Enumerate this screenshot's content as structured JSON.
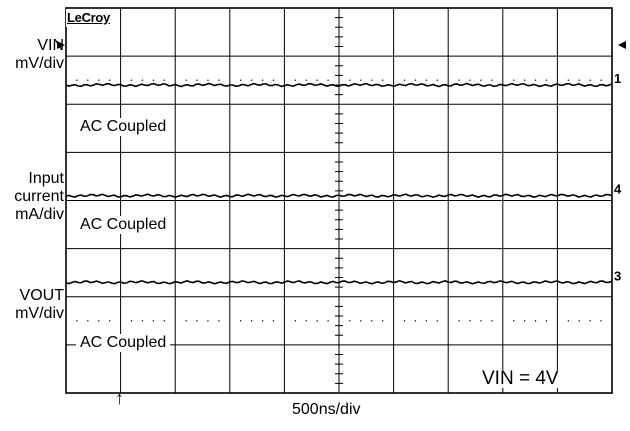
{
  "brand": "LeCroy",
  "chart_data": {
    "type": "line",
    "title": "",
    "grid": true,
    "x_divisions": 10,
    "y_divisions": 8,
    "x_scale": "500ns/div",
    "trigger_marker": "↑",
    "condition": "VIN = 4V",
    "channels": [
      {
        "name": "VIN",
        "scale": "mV/div",
        "coupling": "AC Coupled",
        "marker": "1",
        "level_div": 1.6,
        "values": [
          0,
          0,
          0,
          0,
          0,
          0,
          0,
          0,
          0,
          0,
          0
        ]
      },
      {
        "name": "Input current",
        "scale": "mA/div",
        "coupling": "AC Coupled",
        "marker": "4",
        "level_div": 3.9,
        "values": [
          0,
          0,
          0,
          0,
          0,
          0,
          0,
          0,
          0,
          0,
          0
        ]
      },
      {
        "name": "VOUT",
        "scale": "mV/div",
        "coupling": "AC Coupled",
        "marker": "3",
        "level_div": 5.7,
        "values": [
          0,
          0,
          0,
          0,
          0,
          0,
          0,
          0,
          0,
          0,
          0
        ]
      }
    ]
  },
  "labels": {
    "ch1": [
      "VIN",
      "mV/div"
    ],
    "ch4": [
      "Input",
      "current",
      "mA/div"
    ],
    "ch3": [
      "VOUT",
      "mV/div"
    ],
    "xscale": "500ns/div",
    "condition": "VIN = 4V",
    "coupling": "AC Coupled"
  }
}
